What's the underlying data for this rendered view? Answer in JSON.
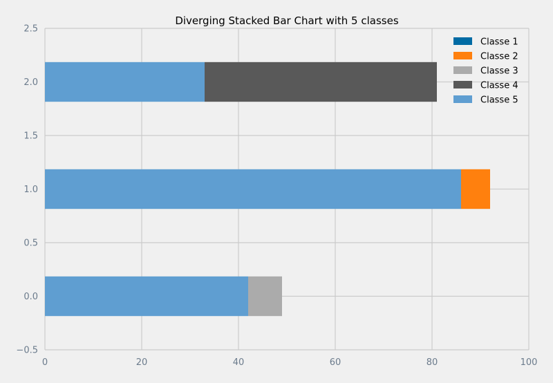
{
  "chart_data": {
    "type": "bar",
    "orientation": "horizontal",
    "stacked": true,
    "title": "Diverging Stacked Bar Chart with 5 classes",
    "xlabel": "",
    "ylabel": "",
    "xlim": [
      0,
      100
    ],
    "ylim": [
      -0.5,
      2.5
    ],
    "x_ticks": [
      "0",
      "20",
      "40",
      "60",
      "80",
      "100"
    ],
    "x_tick_values": [
      0,
      20,
      40,
      60,
      80,
      100
    ],
    "y_ticks": [
      "−0.5",
      "0.0",
      "0.5",
      "1.0",
      "1.5",
      "2.0",
      "2.5"
    ],
    "y_tick_values": [
      -0.5,
      0,
      0.5,
      1,
      1.5,
      2,
      2.5
    ],
    "grid": true,
    "legend_position": "top-right",
    "categories": [
      0,
      1,
      2
    ],
    "bar_height": 0.37,
    "series": [
      {
        "name": "Classe 1",
        "color": "#006ba4",
        "values": [
          0,
          0,
          0
        ]
      },
      {
        "name": "Classe 2",
        "color": "#ff800e",
        "values": [
          0,
          6,
          0
        ]
      },
      {
        "name": "Classe 3",
        "color": "#ababab",
        "values": [
          7,
          0,
          0
        ]
      },
      {
        "name": "Classe 4",
        "color": "#595959",
        "values": [
          0,
          0,
          48
        ]
      },
      {
        "name": "Classe 5",
        "color": "#5f9ed1",
        "values": [
          42,
          86,
          33
        ]
      }
    ],
    "stack_order": [
      "Classe 5",
      "Classe 1",
      "Classe 2",
      "Classe 3",
      "Classe 4"
    ]
  }
}
